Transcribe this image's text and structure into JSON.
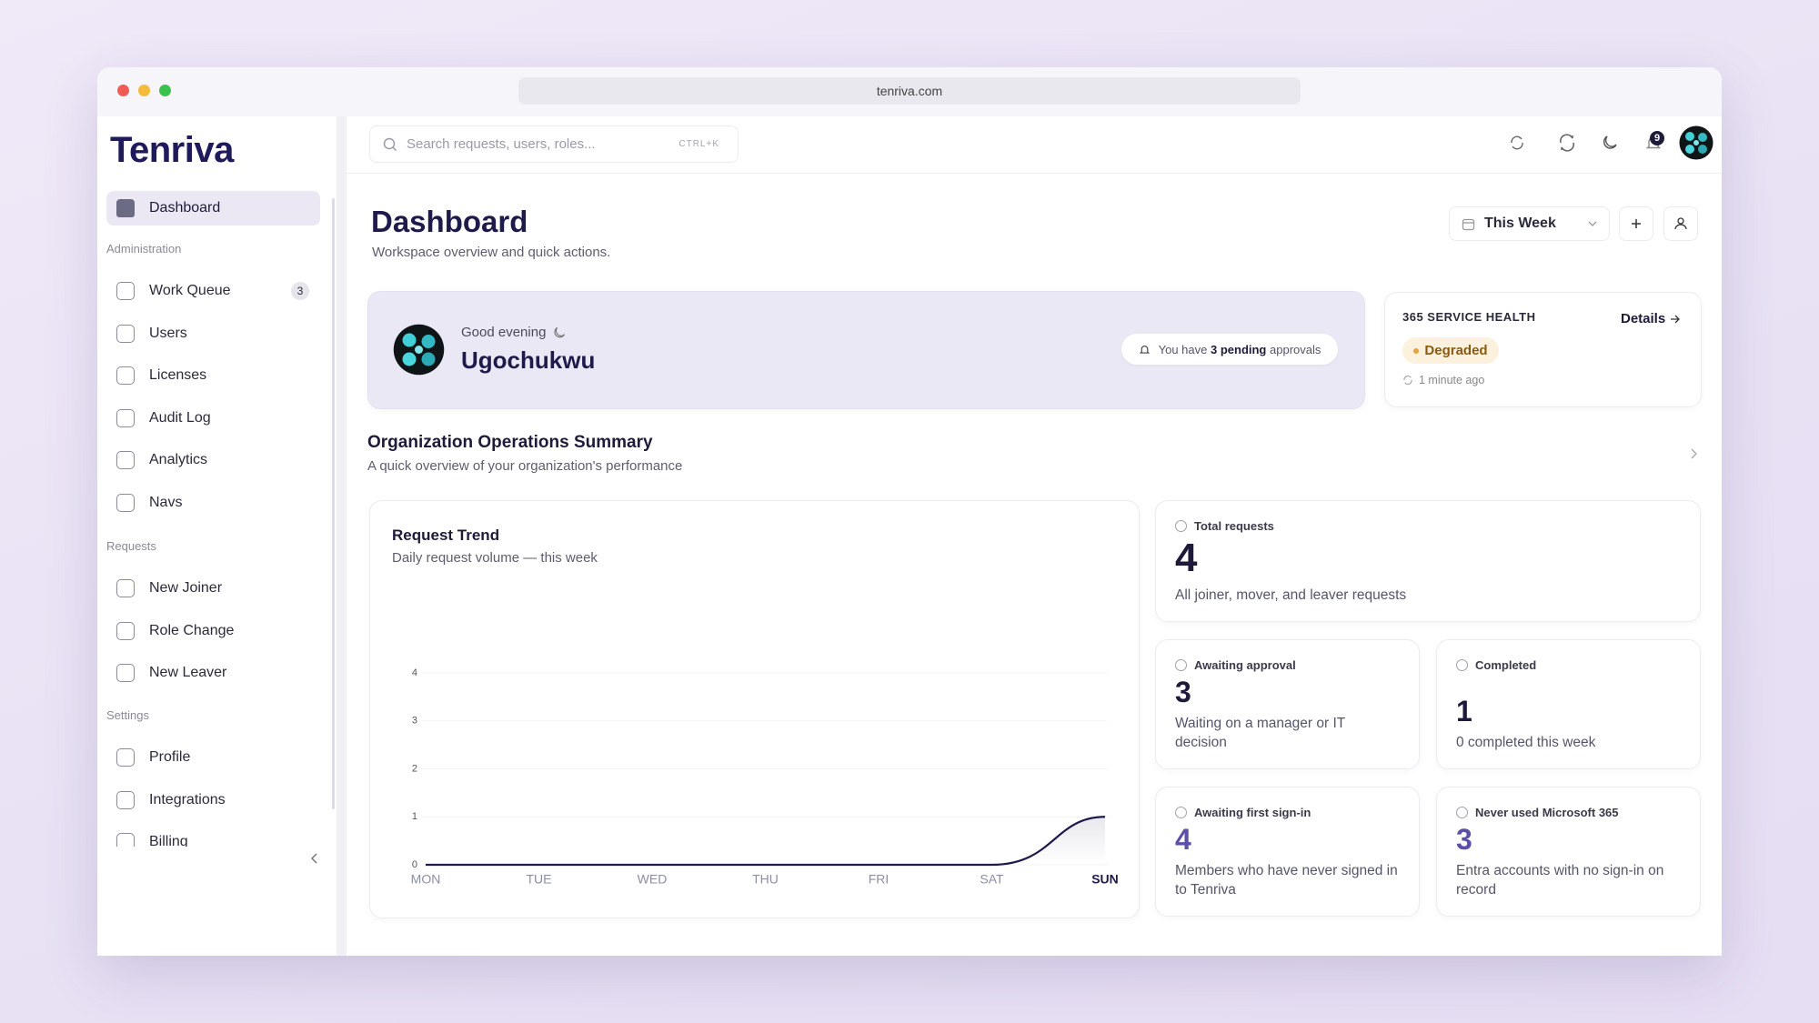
{
  "browser": {
    "url": "tenriva.com"
  },
  "sidebar": {
    "logo": "Tenriva",
    "active": "Dashboard",
    "sections": [
      {
        "label": "Administration",
        "items": [
          {
            "label": "Work Queue",
            "badge": 3
          },
          {
            "label": "Users"
          },
          {
            "label": "Licenses"
          },
          {
            "label": "Audit Log"
          },
          {
            "label": "Analytics"
          },
          {
            "label": "Navs"
          }
        ]
      },
      {
        "label": "Requests",
        "items": [
          {
            "label": "New Joiner"
          },
          {
            "label": "Role Change"
          },
          {
            "label": "New Leaver"
          }
        ]
      },
      {
        "label": "Settings",
        "items": [
          {
            "label": "Profile"
          },
          {
            "label": "Integrations"
          },
          {
            "label": "Billing"
          }
        ]
      }
    ]
  },
  "header": {
    "search_placeholder": "Search requests, users, roles...",
    "shortcut": "CTRL+K",
    "notification_count": 9
  },
  "page": {
    "title": "Dashboard",
    "subtitle": "Workspace overview and quick actions.",
    "range": "This Week"
  },
  "greeting": {
    "salutation": "Good evening",
    "name": "Ugochukwu",
    "pending_prefix": "You have",
    "pending_highlight": "3 pending",
    "pending_suffix": "approvals"
  },
  "health": {
    "title": "365 SERVICE HEALTH",
    "link": "Details",
    "status": "Degraded",
    "updated": "1 minute ago"
  },
  "summary": {
    "title": "Organization Operations Summary",
    "subtitle": "A quick overview of your organization's performance"
  },
  "chart_data": {
    "type": "line",
    "title": "Request Trend",
    "subtitle": "Daily request volume — this week",
    "categories": [
      "MON",
      "TUE",
      "WED",
      "THU",
      "FRI",
      "SAT",
      "SUN"
    ],
    "values": [
      0,
      0,
      0,
      0,
      0,
      0,
      1
    ],
    "color": "#1e1b4b",
    "ylim": [
      0,
      4
    ],
    "yticks": [
      0,
      1,
      2,
      3,
      4
    ],
    "grid": true
  },
  "stats": [
    {
      "label": "Total requests",
      "value": 4,
      "description": "All joiner, mover, and leaver requests"
    },
    {
      "label": "Awaiting approval",
      "value": 3,
      "description": "Waiting on a manager or IT decision"
    },
    {
      "label": "Completed",
      "value": 1,
      "description": "0 completed this week"
    },
    {
      "label": "Awaiting first sign-in",
      "value": 4,
      "description": "Members who have never signed in to Tenriva"
    },
    {
      "label": "Never used Microsoft 365",
      "value": 3,
      "description": "Entra accounts with no sign-in on record"
    }
  ]
}
